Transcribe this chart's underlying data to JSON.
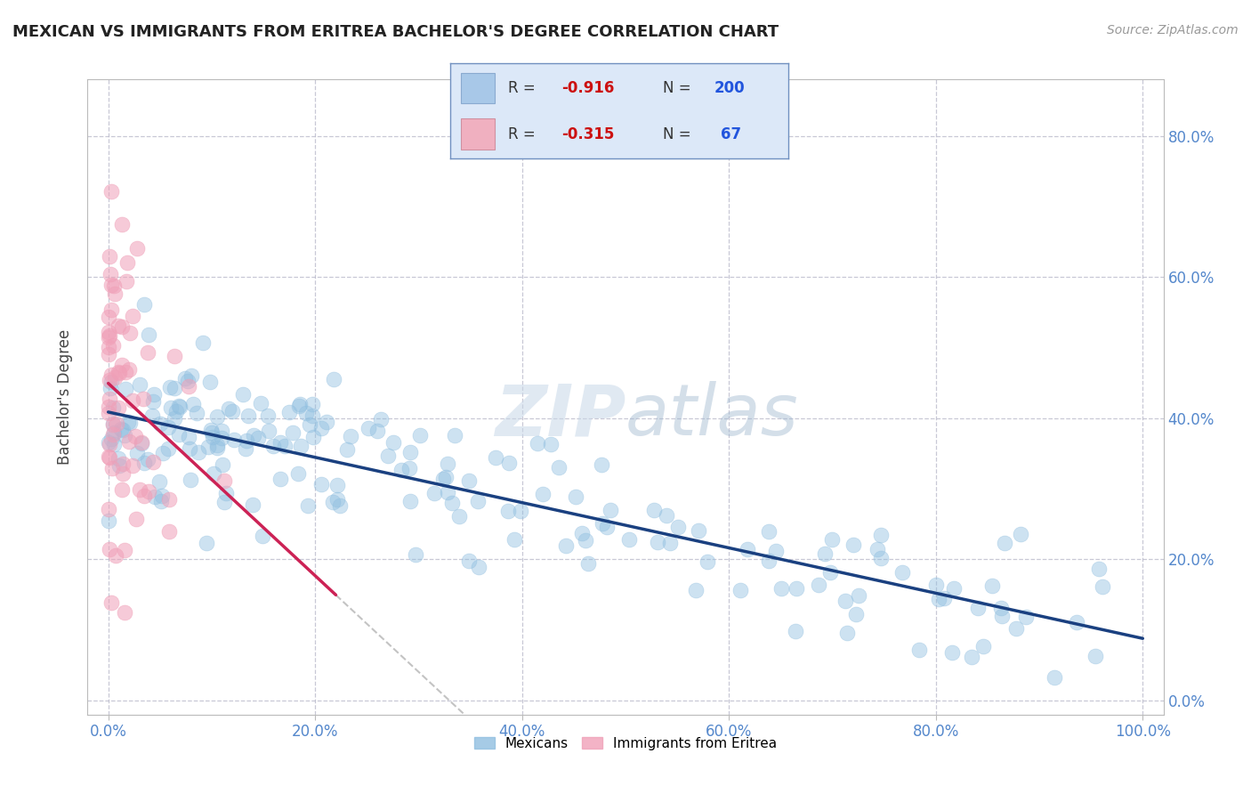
{
  "title": "MEXICAN VS IMMIGRANTS FROM ERITREA BACHELOR'S DEGREE CORRELATION CHART",
  "source": "Source: ZipAtlas.com",
  "ylabel": "Bachelor's Degree",
  "xlim": [
    -0.02,
    1.02
  ],
  "ylim": [
    -0.02,
    0.88
  ],
  "x_ticks": [
    0.0,
    0.2,
    0.4,
    0.6,
    0.8,
    1.0
  ],
  "x_tick_labels": [
    "0.0%",
    "20.0%",
    "40.0%",
    "60.0%",
    "80.0%",
    "100.0%"
  ],
  "y_ticks": [
    0.0,
    0.2,
    0.4,
    0.6,
    0.8
  ],
  "y_tick_labels_right": [
    "0.0%",
    "20.0%",
    "40.0%",
    "60.0%",
    "80.0%"
  ],
  "mexican_color": "#90bfe0",
  "eritrea_color": "#f0a0b8",
  "regression_mexican_color": "#1a4080",
  "regression_eritrea_color": "#cc2255",
  "legend_box_color": "#dce8f8",
  "legend_border_color": "#7090c0",
  "R_mexican": -0.916,
  "N_mexican": 200,
  "R_eritrea": -0.315,
  "N_eritrea": 67,
  "watermark_zip": "ZIP",
  "watermark_atlas": "atlas",
  "grid_color": "#bbbbcc",
  "background_color": "#ffffff",
  "title_color": "#222222",
  "axis_label_color": "#444444",
  "tick_label_color": "#5588cc",
  "source_color": "#999999"
}
